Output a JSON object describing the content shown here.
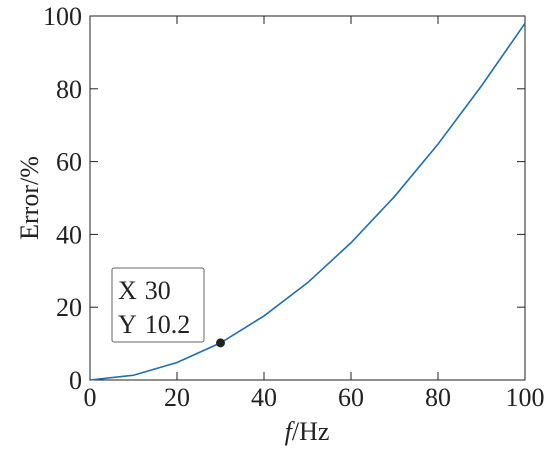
{
  "chart_data": {
    "type": "line",
    "xlabel": {
      "symbol": "f",
      "unit": "/Hz"
    },
    "ylabel": "Error/%",
    "x": [
      0,
      10,
      20,
      30,
      40,
      50,
      60,
      70,
      80,
      90,
      100
    ],
    "series": [
      {
        "name": "Error",
        "color": "#1f6fb0",
        "values": [
          0,
          1.3,
          4.8,
          10.2,
          17.6,
          26.7,
          37.7,
          50.4,
          64.8,
          80.8,
          98
        ]
      }
    ],
    "xlim": [
      0,
      100
    ],
    "ylim": [
      0,
      100
    ],
    "xticks": [
      0,
      20,
      40,
      60,
      80,
      100
    ],
    "yticks": [
      0,
      20,
      40,
      60,
      80,
      100
    ],
    "annotation": {
      "x": 30,
      "y": 10.2,
      "x_prefix": "X",
      "y_prefix": "Y"
    }
  }
}
